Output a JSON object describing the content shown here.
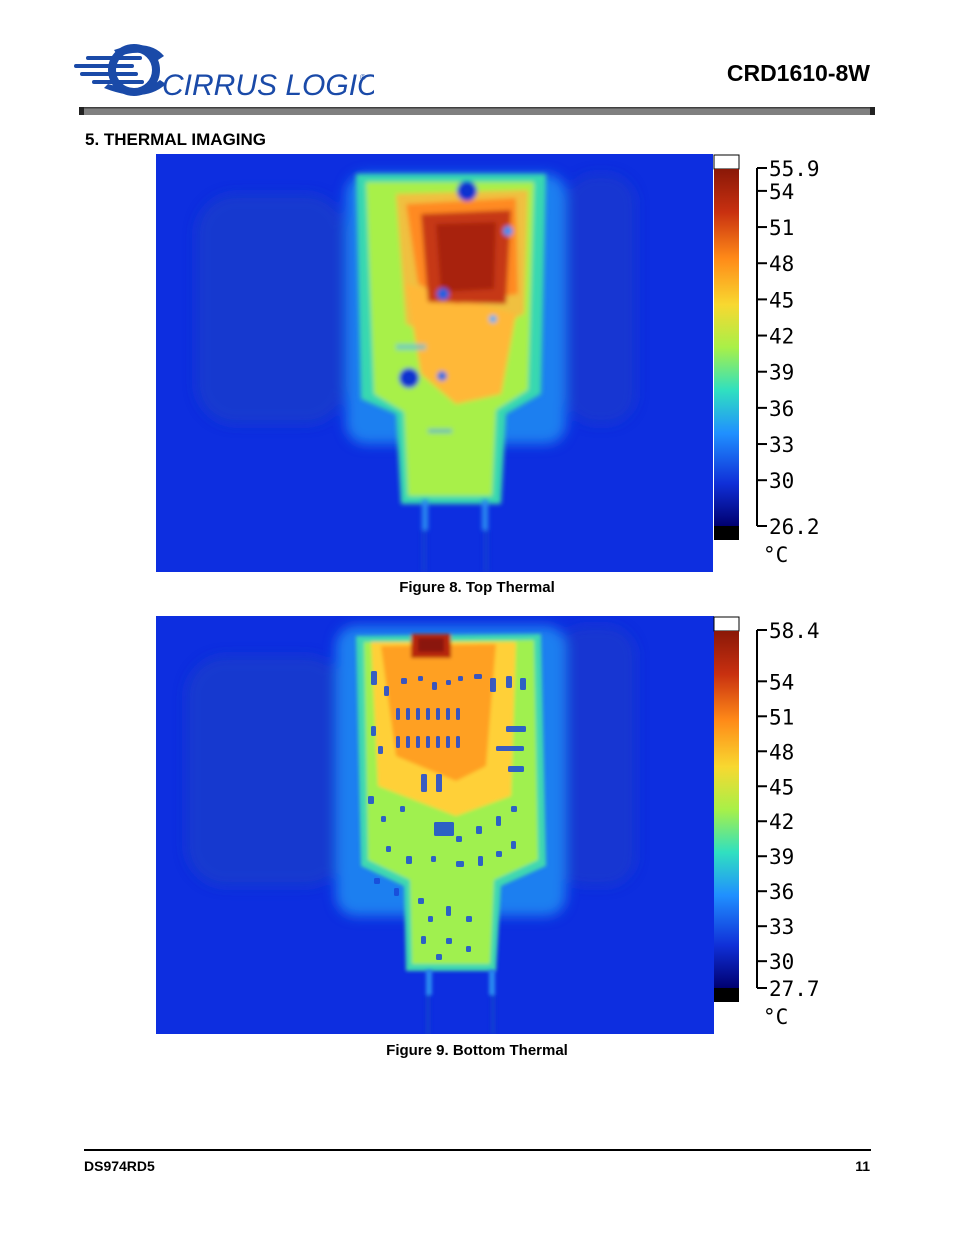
{
  "header": {
    "logo_text": "CIRRUS LOGIC",
    "logo_color": "#1a4aa8",
    "doc_title": "CRD1610-8W"
  },
  "section": {
    "number": "5.",
    "title": "THERMAL IMAGING",
    "heading": "5.  THERMAL IMAGING"
  },
  "figures": [
    {
      "caption": "Figure 8.  Top Thermal",
      "scale": {
        "labels": [
          "55.9",
          "54",
          "51",
          "48",
          "45",
          "42",
          "39",
          "36",
          "33",
          "30",
          "26.2"
        ],
        "unit": "°C",
        "max": 55.9,
        "min": 26.2
      }
    },
    {
      "caption": "Figure 9.  Bottom Thermal",
      "scale": {
        "labels": [
          "58.4",
          "54",
          "51",
          "48",
          "45",
          "42",
          "39",
          "36",
          "33",
          "30",
          "27.7"
        ],
        "unit": "°C",
        "max": 58.4,
        "min": 27.7
      }
    }
  ],
  "footer": {
    "doc_number": "DS974RD5",
    "page_number": "11"
  },
  "colors": {
    "thermal_cold": "#0a2fd8",
    "thermal_cool": "#2a8cff",
    "thermal_mid": "#b8f040",
    "thermal_warm": "#ffb020",
    "thermal_hot": "#b82010"
  }
}
